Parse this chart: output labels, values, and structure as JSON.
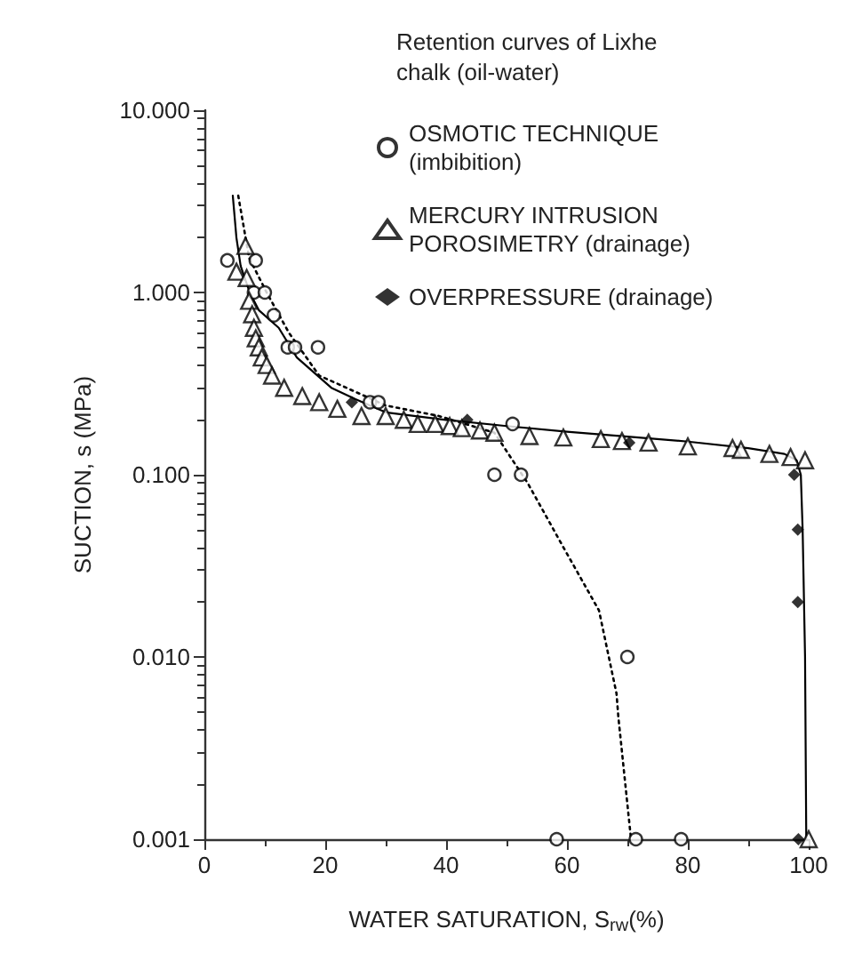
{
  "chart_data": {
    "type": "scatter",
    "legend_title": "Retention curves of Lixhe chalk (oil-water)",
    "xlabel": "WATER SATURATION, S$_{rw}$(%)",
    "ylabel": "SUCTION, s (MPa)",
    "xlim": [
      0,
      100
    ],
    "xticks": [
      0,
      20,
      40,
      60,
      80,
      100
    ],
    "ylim": [
      0.001,
      10
    ],
    "yticks": [
      {
        "value": 0.001,
        "label": "0.001"
      },
      {
        "value": 0.01,
        "label": "0.010"
      },
      {
        "value": 0.1,
        "label": "0.100"
      },
      {
        "value": 1,
        "label": "1.000"
      },
      {
        "value": 10,
        "label": "10.000"
      }
    ],
    "log": "y",
    "grid": false,
    "legend": "top right",
    "series": [
      {
        "name": "OSMOTIC TECHNIQUE (imbibition)",
        "marker": "circle",
        "color": "#000000",
        "x": [
          3.8,
          8.5,
          8.2,
          10,
          11.5,
          13.8,
          15,
          18.8,
          27.4,
          28.8,
          51,
          48,
          52.4,
          70,
          58.3,
          71.4,
          78.9
        ],
        "values": [
          1.5,
          1.5,
          1.0,
          1.0,
          0.75,
          0.5,
          0.5,
          0.5,
          0.25,
          0.25,
          0.19,
          0.1,
          0.1,
          0.01,
          0.001,
          0.001,
          0.001
        ]
      },
      {
        "name": "MERCURY INTRUSION POROSIMETRY (drainage)",
        "marker": "triangle",
        "color": "#000000",
        "x": [
          6.8,
          5.3,
          7,
          7.4,
          7.9,
          8.2,
          8.5,
          9,
          9.5,
          10.3,
          11.2,
          13.2,
          16.2,
          19,
          22,
          26,
          30,
          33,
          35.3,
          38.2,
          40.6,
          42.6,
          45.6,
          48,
          53.8,
          59.4,
          65.6,
          69.1,
          73.5,
          80,
          87.4,
          88.8,
          93.5,
          97,
          99.4,
          100
        ],
        "values": [
          1.8,
          1.3,
          1.2,
          0.9,
          0.76,
          0.64,
          0.56,
          0.5,
          0.44,
          0.4,
          0.35,
          0.3,
          0.27,
          0.25,
          0.23,
          0.21,
          0.21,
          0.2,
          0.19,
          0.19,
          0.185,
          0.18,
          0.175,
          0.17,
          0.163,
          0.16,
          0.157,
          0.153,
          0.15,
          0.143,
          0.14,
          0.137,
          0.13,
          0.125,
          0.12,
          0.001
        ]
      },
      {
        "name": "OVERPRESSURE (drainage)",
        "marker": "diamond",
        "color": "#000000",
        "x": [
          24.4,
          43.5,
          70.3,
          97.6,
          98.2,
          98.2,
          98.3
        ],
        "values": [
          0.25,
          0.2,
          0.15,
          0.1,
          0.05,
          0.02,
          0.001
        ]
      },
      {
        "type": "line",
        "marker": "none",
        "line_style": "solid",
        "color": "#000000",
        "x": [
          4.7,
          5.3,
          6,
          7.5,
          9,
          12.3,
          15.3,
          21,
          25,
          30,
          40,
          50,
          60,
          70,
          80,
          90,
          96,
          98,
          98.7,
          99,
          99.4,
          99.6
        ],
        "values": [
          3.4,
          2,
          1.4,
          1.0,
          0.8,
          0.64,
          0.44,
          0.3,
          0.26,
          0.22,
          0.2,
          0.185,
          0.172,
          0.162,
          0.152,
          0.14,
          0.13,
          0.12,
          0.1,
          0.05,
          0.01,
          0.001
        ]
      },
      {
        "type": "line",
        "marker": "none",
        "line_style": "dotted",
        "color": "#000000",
        "x": [
          5.6,
          7.4,
          10.3,
          14,
          19,
          30,
          38.8,
          48,
          53.5,
          59.4,
          65.3,
          68.2,
          68.5,
          70.6
        ],
        "values": [
          3.4,
          1.55,
          1.0,
          0.6,
          0.35,
          0.24,
          0.21,
          0.17,
          0.09,
          0.04,
          0.018,
          0.0063,
          0.0047,
          0.001
        ]
      }
    ]
  }
}
